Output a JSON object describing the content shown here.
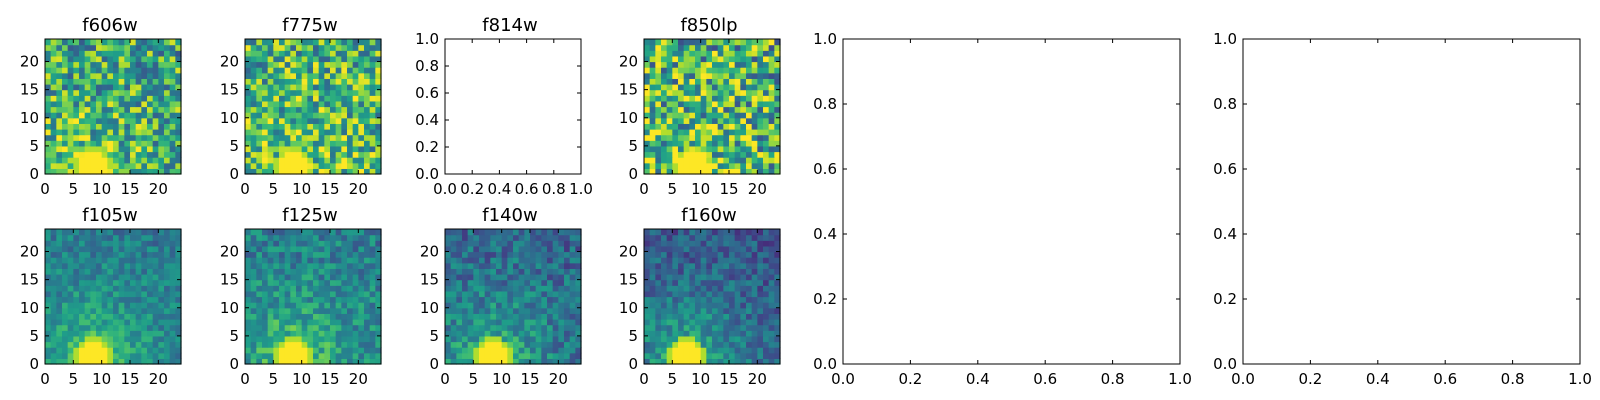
{
  "chart_data": [
    {
      "type": "heatmap",
      "title": "f606w",
      "xlim": [
        0,
        24
      ],
      "ylim": [
        0,
        24
      ],
      "xticks": [
        "0",
        "5",
        "10",
        "15",
        "20"
      ],
      "yticks": [
        "0",
        "5",
        "10",
        "15",
        "20"
      ],
      "grid_size": 24,
      "colormap": "viridis",
      "bright_spot": [
        8,
        1
      ],
      "glow": 0.2,
      "noise": 0.34,
      "base": 0.6,
      "seed": 11
    },
    {
      "type": "heatmap",
      "title": "f775w",
      "xlim": [
        0,
        24
      ],
      "ylim": [
        0,
        24
      ],
      "xticks": [
        "0",
        "5",
        "10",
        "15",
        "20"
      ],
      "yticks": [
        "0",
        "5",
        "10",
        "15",
        "20"
      ],
      "grid_size": 24,
      "colormap": "viridis",
      "bright_spot": [
        8,
        1
      ],
      "glow": 0.2,
      "noise": 0.34,
      "base": 0.63,
      "seed": 23
    },
    {
      "type": "empty",
      "title": "f814w",
      "xlim": [
        0,
        1
      ],
      "ylim": [
        0,
        1
      ],
      "xticks": [
        "0.0",
        "0.2",
        "0.4",
        "0.6",
        "0.8",
        "1.0"
      ],
      "yticks": [
        "0.0",
        "0.2",
        "0.4",
        "0.6",
        "0.8",
        "1.0"
      ]
    },
    {
      "type": "heatmap",
      "title": "f850lp",
      "xlim": [
        0,
        24
      ],
      "ylim": [
        0,
        24
      ],
      "xticks": [
        "0",
        "5",
        "10",
        "15",
        "20"
      ],
      "yticks": [
        "0",
        "5",
        "10",
        "15",
        "20"
      ],
      "grid_size": 24,
      "colormap": "viridis",
      "bright_spot": [
        8,
        1
      ],
      "glow": 0.2,
      "noise": 0.4,
      "base": 0.62,
      "seed": 37
    },
    {
      "type": "heatmap",
      "title": "f105w",
      "xlim": [
        0,
        24
      ],
      "ylim": [
        0,
        24
      ],
      "xticks": [
        "0",
        "5",
        "10",
        "15",
        "20"
      ],
      "yticks": [
        "0",
        "5",
        "10",
        "15",
        "20"
      ],
      "grid_size": 24,
      "colormap": "viridis",
      "bright_spot": [
        8,
        1
      ],
      "glow": 0.42,
      "noise": 0.14,
      "base": 0.38,
      "seed": 41
    },
    {
      "type": "heatmap",
      "title": "f125w",
      "xlim": [
        0,
        24
      ],
      "ylim": [
        0,
        24
      ],
      "xticks": [
        "0",
        "5",
        "10",
        "15",
        "20"
      ],
      "yticks": [
        "0",
        "5",
        "10",
        "15",
        "20"
      ],
      "grid_size": 24,
      "colormap": "viridis",
      "bright_spot": [
        8,
        1
      ],
      "glow": 0.4,
      "noise": 0.17,
      "base": 0.4,
      "seed": 53
    },
    {
      "type": "heatmap",
      "title": "f140w",
      "xlim": [
        0,
        24
      ],
      "ylim": [
        0,
        24
      ],
      "xticks": [
        "0",
        "5",
        "10",
        "15",
        "20"
      ],
      "yticks": [
        "0",
        "5",
        "10",
        "15",
        "20"
      ],
      "grid_size": 24,
      "colormap": "viridis",
      "bright_spot": [
        8,
        1
      ],
      "glow": 0.45,
      "noise": 0.17,
      "base": 0.3,
      "seed": 67
    },
    {
      "type": "heatmap",
      "title": "f160w",
      "xlim": [
        0,
        24
      ],
      "ylim": [
        0,
        24
      ],
      "xticks": [
        "0",
        "5",
        "10",
        "15",
        "20"
      ],
      "yticks": [
        "0",
        "5",
        "10",
        "15",
        "20"
      ],
      "grid_size": 24,
      "colormap": "viridis",
      "bright_spot": [
        7,
        1
      ],
      "glow": 0.5,
      "noise": 0.15,
      "base": 0.24,
      "seed": 79
    },
    {
      "type": "empty",
      "title": "",
      "xlim": [
        0,
        1
      ],
      "ylim": [
        0,
        1
      ],
      "xticks": [
        "0.0",
        "0.2",
        "0.4",
        "0.6",
        "0.8",
        "1.0"
      ],
      "yticks": [
        "0.0",
        "0.2",
        "0.4",
        "0.6",
        "0.8",
        "1.0"
      ]
    },
    {
      "type": "empty",
      "title": "",
      "xlim": [
        0,
        1
      ],
      "ylim": [
        0,
        1
      ],
      "xticks": [
        "0.0",
        "0.2",
        "0.4",
        "0.6",
        "0.8",
        "1.0"
      ],
      "yticks": [
        "0.0",
        "0.2",
        "0.4",
        "0.6",
        "0.8",
        "1.0"
      ]
    }
  ]
}
